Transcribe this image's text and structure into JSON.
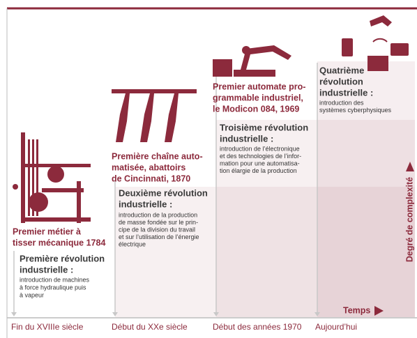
{
  "stages": [
    {
      "invention": [
        "Premier métier à",
        "tisser mécanique 1784"
      ],
      "revolution": [
        "Première révolution",
        "industrielle :"
      ],
      "description": [
        "introduction de machines",
        "à force hydraulique puis",
        "à vapeur"
      ],
      "era": "Fin du XVIIIe siècle"
    },
    {
      "invention": [
        "Première chaîne auto-",
        "matisée, abattoirs",
        "de Cincinnati, 1870"
      ],
      "revolution": [
        "Deuxième révolution",
        "industrielle :"
      ],
      "description": [
        "introduction de la production",
        "de masse fondée sur le prin-",
        "cipe de la division du travail",
        "et sur l’utilisation de l’énergie",
        "électrique"
      ],
      "era": "Début du XXe siècle"
    },
    {
      "invention": [
        "Premier automate pro-",
        "grammable industriel,",
        "le Modicon 084, 1969"
      ],
      "revolution": [
        "Troisième révolution",
        "industrielle :"
      ],
      "description": [
        "introduction de l’électronique",
        "et des technologies de l’infor-",
        "mation pour une automatisa-",
        "tion élargie de la production"
      ],
      "era": "Début des années 1970"
    },
    {
      "revolution": [
        "Quatrième",
        "révolution",
        "industrielle :"
      ],
      "description": [
        "introduction des",
        "systèmes cyberphysiques"
      ],
      "era": "Aujourd’hui"
    }
  ],
  "axis": {
    "y_label": "Degré de complexité",
    "x_label": "Temps"
  }
}
